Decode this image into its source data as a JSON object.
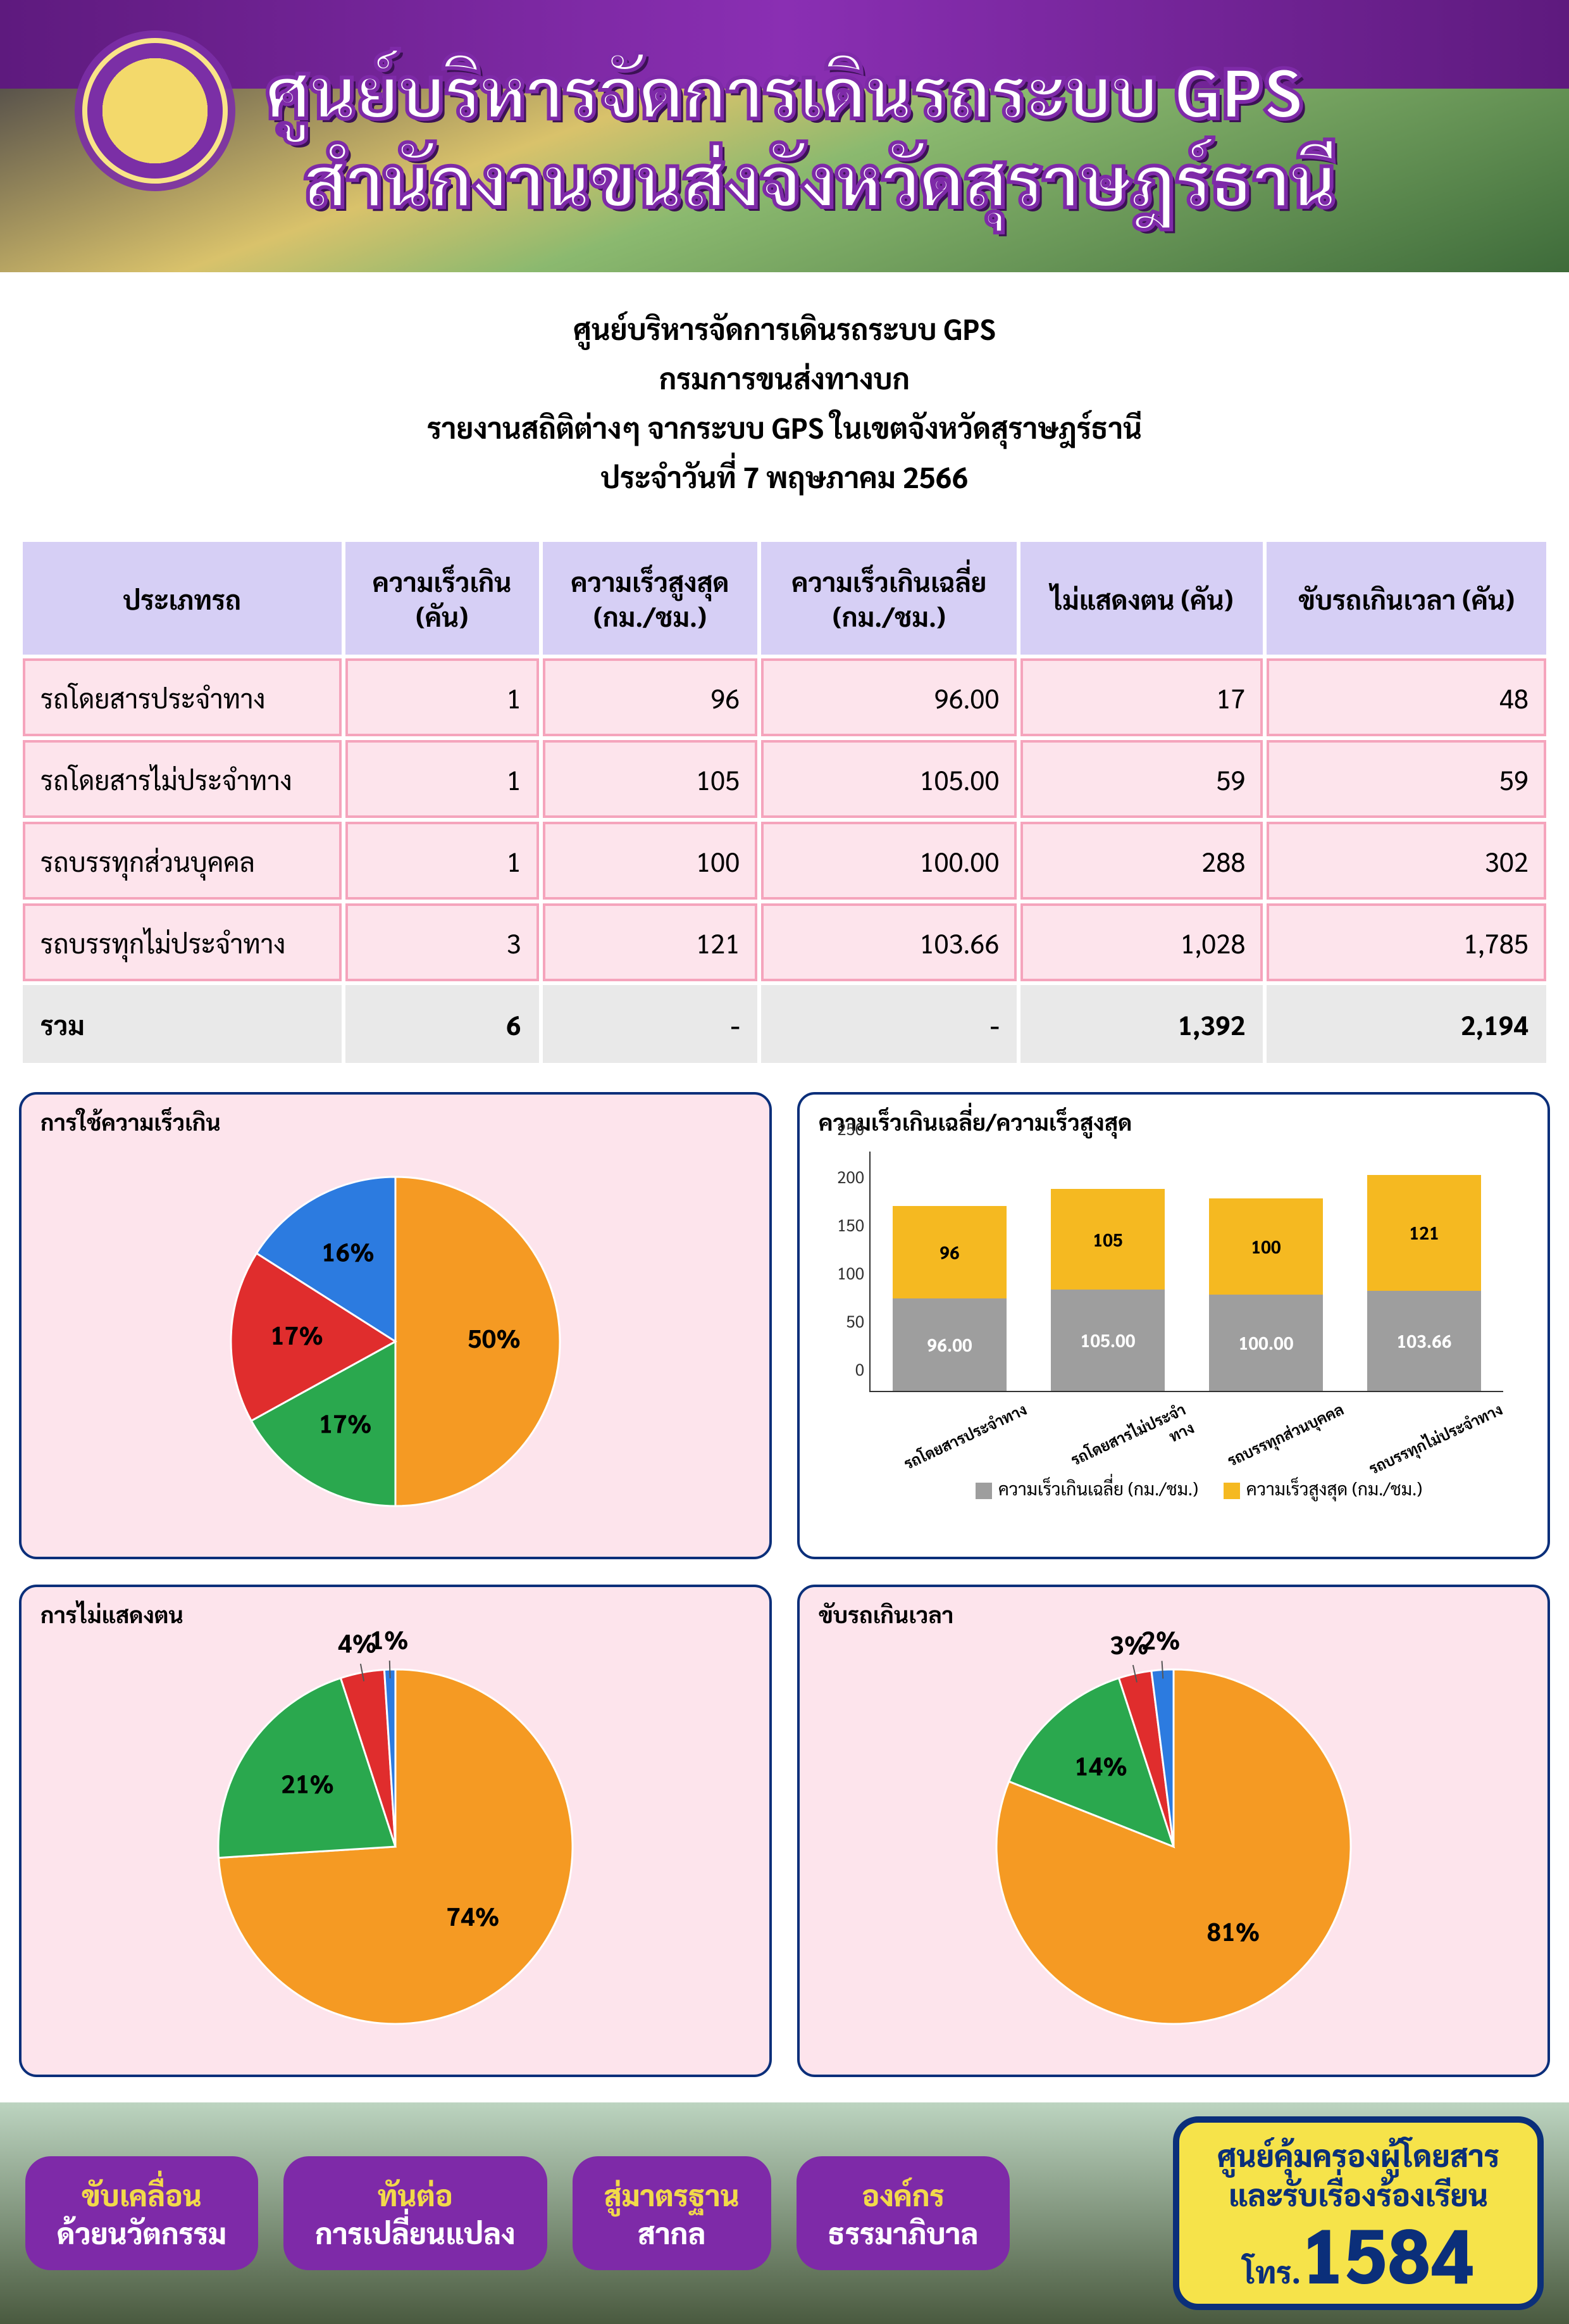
{
  "banner": {
    "line1": "ศูนย์บริหารจัดการเดินรถระบบ GPS",
    "line2": "สำนักงานขนส่งจังหวัดสุราษฎร์ธานี"
  },
  "subheader": {
    "l1": "ศูนย์บริหารจัดการเดินรถระบบ GPS",
    "l2": "กรมการขนส่งทางบก",
    "l3": "รายงานสถิติต่างๆ จากระบบ GPS ในเขตจังหวัดสุราษฎร์ธานี",
    "l4": "ประจำวันที่     7   พฤษภาคม   2566"
  },
  "table": {
    "headers": [
      "ประเภทรถ",
      "ความเร็วเกิน\n(คัน)",
      "ความเร็วสูงสุด\n(กม./ชม.)",
      "ความเร็วเกินเฉลี่ย\n(กม./ชม.)",
      "ไม่แสดงตน (คัน)",
      "ขับรถเกินเวลา (คัน)"
    ],
    "rows": [
      [
        "รถโดยสารประจำทาง",
        "1",
        "96",
        "96.00",
        "17",
        "48"
      ],
      [
        "รถโดยสารไม่ประจำทาง",
        "1",
        "105",
        "105.00",
        "59",
        "59"
      ],
      [
        "รถบรรทุกส่วนบุคคล",
        "1",
        "100",
        "100.00",
        "288",
        "302"
      ],
      [
        "รถบรรทุกไม่ประจำทาง",
        "3",
        "121",
        "103.66",
        "1,028",
        "1,785"
      ]
    ],
    "total": [
      "รวม",
      "6",
      "-",
      "-",
      "1,392",
      "2,194"
    ]
  },
  "colors": {
    "orange": "#f59a23",
    "green": "#2aa84e",
    "red": "#e02d2d",
    "blue": "#2c7be0",
    "grey": "#9e9e9e",
    "gold": "#f5b921",
    "card_border": "#0b2f7a",
    "card_bg_pink": "#fde4ec"
  },
  "pie1": {
    "title": "การใช้ความเร็วเกิน",
    "slices": [
      {
        "label": "50%",
        "value": 50,
        "color": "#f59a23",
        "lc": "#000"
      },
      {
        "label": "17%",
        "value": 17,
        "color": "#2aa84e",
        "lc": "#000"
      },
      {
        "label": "17%",
        "value": 17,
        "color": "#e02d2d",
        "lc": "#000"
      },
      {
        "label": "16%",
        "value": 16,
        "color": "#2c7be0",
        "lc": "#000"
      }
    ]
  },
  "bar": {
    "title": "ความเร็วเกินเฉลี่ย/ความเร็วสูงสุด",
    "ymax": 250,
    "yticks": [
      0,
      50,
      100,
      150,
      200,
      250
    ],
    "categories": [
      "รถโดยสารประจำทาง",
      "รถโดยสารไม่ประจำทาง",
      "รถบรรทุกส่วนบุคคล",
      "รถบรรทุกไม่ประจำทาง"
    ],
    "series_bottom": {
      "name": "ความเร็วเกินเฉลี่ย (กม./ชม.)",
      "color": "#9e9e9e",
      "values": [
        96.0,
        105.0,
        100.0,
        103.66
      ],
      "labels": [
        "96.00",
        "105.00",
        "100.00",
        "103.66"
      ]
    },
    "series_top": {
      "name": "ความเร็วสูงสุด (กม./ชม.)",
      "color": "#f5b921",
      "values": [
        96,
        105,
        100,
        121
      ],
      "labels": [
        "96",
        "105",
        "100",
        "121"
      ]
    }
  },
  "pie2": {
    "title": "การไม่แสดงตน",
    "slices": [
      {
        "label": "74%",
        "value": 74,
        "color": "#f59a23",
        "lc": "#000"
      },
      {
        "label": "21%",
        "value": 21,
        "color": "#2aa84e",
        "lc": "#000"
      },
      {
        "label": "4%",
        "value": 4,
        "color": "#e02d2d",
        "lc": "#000"
      },
      {
        "label": "1%",
        "value": 1,
        "color": "#2c7be0",
        "lc": "#000"
      }
    ]
  },
  "pie3": {
    "title": "ขับรถเกินเวลา",
    "slices": [
      {
        "label": "81%",
        "value": 81,
        "color": "#f59a23",
        "lc": "#000"
      },
      {
        "label": "14%",
        "value": 14,
        "color": "#2aa84e",
        "lc": "#000"
      },
      {
        "label": "3%",
        "value": 3,
        "color": "#e02d2d",
        "lc": "#000"
      },
      {
        "label": "2%",
        "value": 2,
        "color": "#2c7be0",
        "lc": "#000"
      }
    ]
  },
  "footer": {
    "pills": [
      {
        "l1": "ขับเคลื่อน",
        "l2": "ด้วยนวัตกรรม"
      },
      {
        "l1": "ทันต่อ",
        "l2": "การเปลี่ยนแปลง"
      },
      {
        "l1": "สู่มาตรฐาน",
        "l2": "สากล"
      },
      {
        "l1": "องค์กร",
        "l2": "ธรรมาภิบาล"
      }
    ],
    "hotline": {
      "t1": "ศูนย์คุ้มครองผู้โดยสาร",
      "t2": "และรับเรื่องร้องเรียน",
      "tel_label": "โทร.",
      "tel": "1584"
    }
  }
}
